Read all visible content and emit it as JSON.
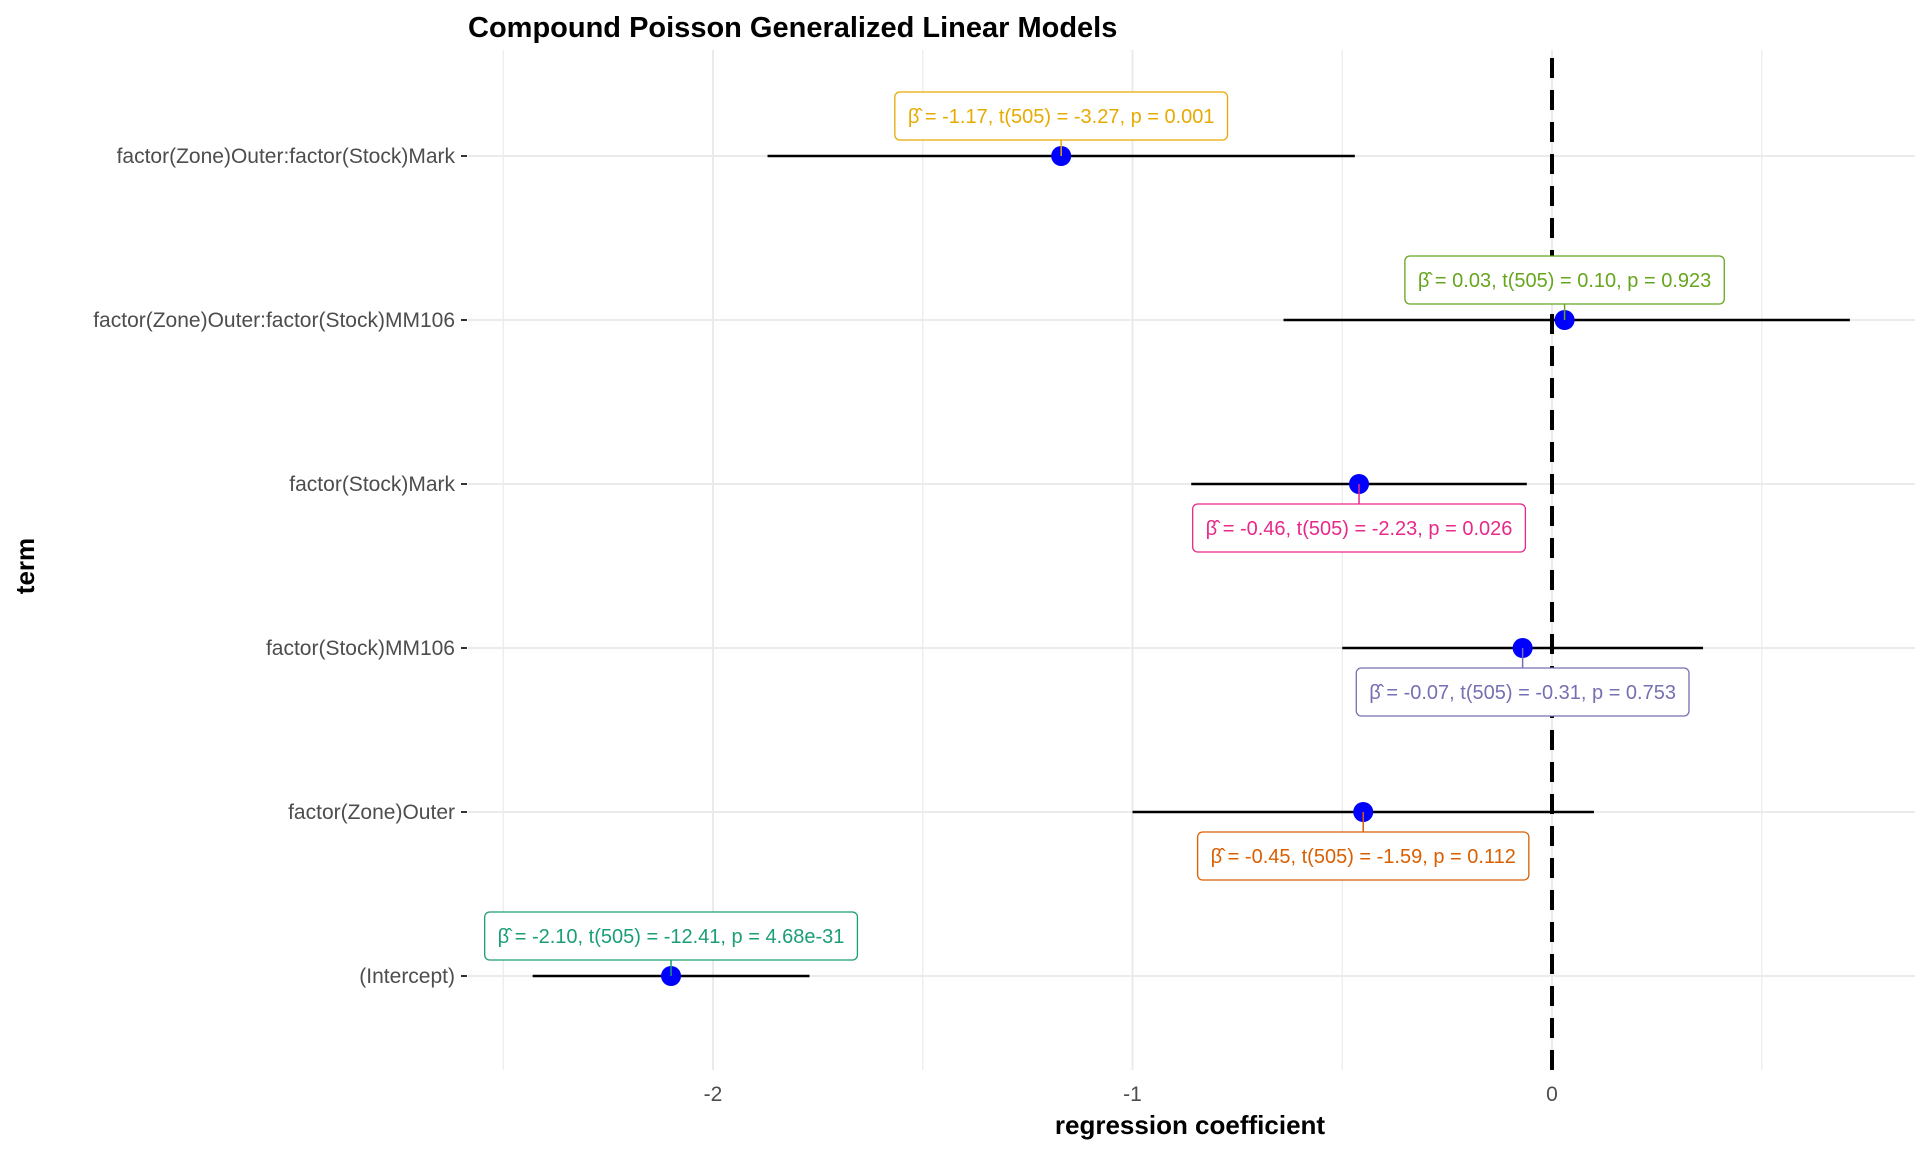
{
  "chart_data": {
    "type": "scatter",
    "title": "Compound Poisson Generalized Linear Models",
    "xlabel": "regression coefficient",
    "ylabel": "term",
    "xlim": [
      -3.0,
      0.85
    ],
    "x_ticks": [
      -2,
      -1,
      0
    ],
    "x_tick_labels": [
      "-2",
      "-1",
      "0"
    ],
    "reference_line": 0,
    "grid": true,
    "point_color": "#0000ff",
    "terms": [
      {
        "term": "factor(Zone)Outer:factor(Stock)Mark",
        "estimate": -1.17,
        "conf_low": -1.87,
        "conf_high": -0.47,
        "label": "β̂ = -1.17,  t(505) = -3.27,  p = 0.001",
        "color": "#e6ab02",
        "label_side": "above"
      },
      {
        "term": "factor(Zone)Outer:factor(Stock)MM106",
        "estimate": 0.03,
        "conf_low": -0.64,
        "conf_high": 0.71,
        "label": "β̂ = 0.03,  t(505) = 0.10,  p = 0.923",
        "color": "#66a61e",
        "label_side": "above"
      },
      {
        "term": "factor(Stock)Mark",
        "estimate": -0.46,
        "conf_low": -0.86,
        "conf_high": -0.06,
        "label": "β̂ = -0.46,  t(505) = -2.23,  p = 0.026",
        "color": "#e7298a",
        "label_side": "below"
      },
      {
        "term": "factor(Stock)MM106",
        "estimate": -0.07,
        "conf_low": -0.5,
        "conf_high": 0.36,
        "label": "β̂ = -0.07,  t(505) = -0.31,  p = 0.753",
        "color": "#7570b3",
        "label_side": "below"
      },
      {
        "term": "factor(Zone)Outer",
        "estimate": -0.45,
        "conf_low": -1.0,
        "conf_high": 0.1,
        "label": "β̂ = -0.45,  t(505) = -1.59,  p = 0.112",
        "color": "#d95f02",
        "label_side": "below"
      },
      {
        "term": "(Intercept)",
        "estimate": -2.1,
        "conf_low": -2.43,
        "conf_high": -1.77,
        "label": "β̂ = -2.10,  t(505) = -12.41,  p = 4.68e-31",
        "color": "#1b9e77",
        "label_side": "above"
      }
    ]
  }
}
